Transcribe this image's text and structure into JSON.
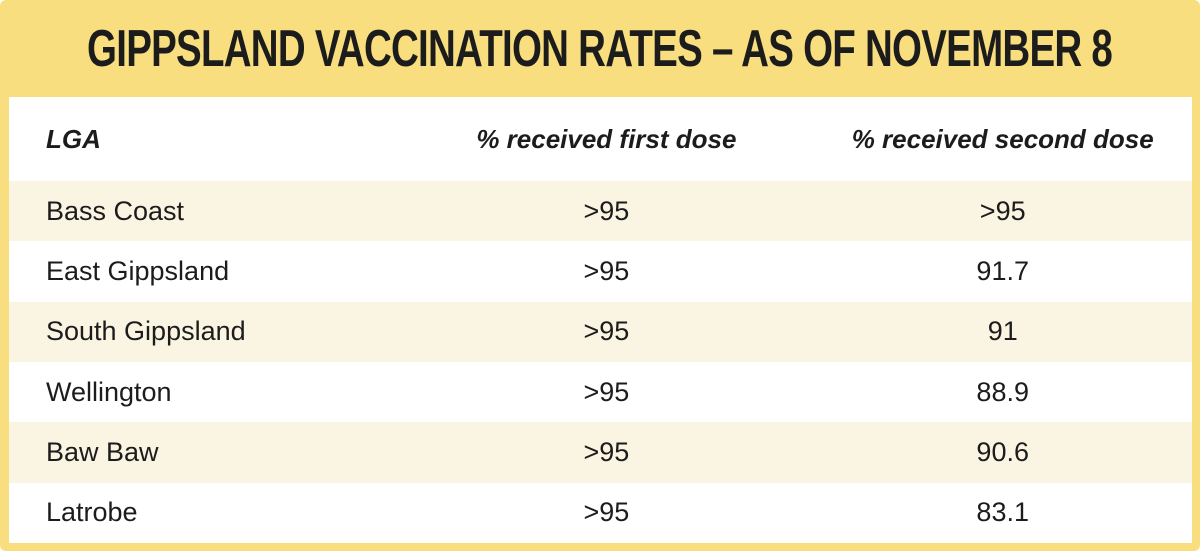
{
  "colors": {
    "banner_yellow": "#F8DE7E",
    "row_cream": "#FAF4E2",
    "row_white": "#FFFFFF",
    "text": "#1C1C1C"
  },
  "banner": {
    "title": "GIPPSLAND VACCINATION RATES – AS OF NOVEMBER 8"
  },
  "table": {
    "columns": [
      "LGA",
      "% received first dose",
      "% received second dose"
    ],
    "rows": [
      {
        "lga": "Bass Coast",
        "first_dose": ">95",
        "second_dose": ">95"
      },
      {
        "lga": "East Gippsland",
        "first_dose": ">95",
        "second_dose": "91.7"
      },
      {
        "lga": "South Gippsland",
        "first_dose": ">95",
        "second_dose": "91"
      },
      {
        "lga": "Wellington",
        "first_dose": ">95",
        "second_dose": "88.9"
      },
      {
        "lga": "Baw Baw",
        "first_dose": ">95",
        "second_dose": "90.6"
      },
      {
        "lga": "Latrobe",
        "first_dose": ">95",
        "second_dose": "83.1"
      }
    ]
  },
  "chart_data": {
    "type": "table",
    "title": "GIPPSLAND VACCINATION RATES – AS OF NOVEMBER 8",
    "columns": [
      "LGA",
      "% received first dose",
      "% received second dose"
    ],
    "rows": [
      [
        "Bass Coast",
        ">95",
        ">95"
      ],
      [
        "East Gippsland",
        ">95",
        "91.7"
      ],
      [
        "South Gippsland",
        ">95",
        "91"
      ],
      [
        "Wellington",
        ">95",
        "88.9"
      ],
      [
        "Baw Baw",
        ">95",
        "90.6"
      ],
      [
        "Latrobe",
        ">95",
        "83.1"
      ]
    ]
  }
}
